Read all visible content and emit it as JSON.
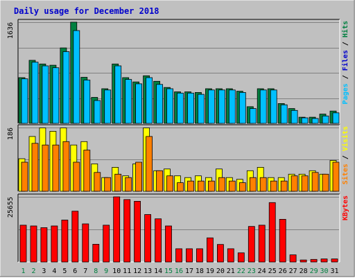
{
  "chart_data": {
    "type": "bar",
    "title": "Daily usage for December 2018",
    "categories": [
      "1",
      "2",
      "3",
      "4",
      "5",
      "6",
      "7",
      "8",
      "9",
      "10",
      "11",
      "12",
      "13",
      "14",
      "15",
      "16",
      "17",
      "18",
      "19",
      "20",
      "21",
      "22",
      "23",
      "24",
      "25",
      "26",
      "27",
      "28",
      "29",
      "30",
      "31"
    ],
    "weekend_days": [
      "1",
      "2",
      "8",
      "9",
      "15",
      "16",
      "22",
      "23",
      "29",
      "30"
    ],
    "colors": {
      "background": "#c0c0c0",
      "title": "#0000cc",
      "hits": "#008040",
      "files": "#00c0ff",
      "sites": "#ff8000",
      "visits": "#ffff00",
      "kbytes": "#ff0000",
      "weekday_label": "#000000",
      "weekend_label": "#008040"
    },
    "panels": [
      {
        "id": "requests",
        "ymax": 1636,
        "ymax_label": "1636",
        "legend": [
          {
            "text": "Pages",
            "color": "#00c0ff"
          },
          {
            "text": " / ",
            "color": "#000000"
          },
          {
            "text": "Files",
            "color": "#0000cc"
          },
          {
            "text": " / ",
            "color": "#000000"
          },
          {
            "text": "Hits",
            "color": "#008040"
          }
        ],
        "series": [
          {
            "name": "Hits",
            "color": "#008040",
            "values": [
              740,
              1020,
              960,
              940,
              1220,
              1636,
              745,
              420,
              560,
              960,
              740,
              670,
              770,
              680,
              580,
              510,
              510,
              500,
              560,
              560,
              560,
              520,
              270,
              560,
              560,
              320,
              240,
              100,
              100,
              150,
              200
            ]
          },
          {
            "name": "Files",
            "color": "#00c0ff",
            "values": [
              720,
              990,
              930,
              900,
              1160,
              1500,
              700,
              370,
              540,
              930,
              710,
              640,
              740,
              630,
              560,
              490,
              490,
              470,
              540,
              540,
              540,
              500,
              240,
              540,
              540,
              300,
              210,
              90,
              80,
              120,
              170
            ]
          }
        ]
      },
      {
        "id": "visitors",
        "ymax": 186,
        "ymax_label": "186",
        "legend": [
          {
            "text": "Sites",
            "color": "#ff8000"
          },
          {
            "text": " / ",
            "color": "#000000"
          },
          {
            "text": "Visits",
            "color": "#ffff00"
          }
        ],
        "series": [
          {
            "name": "Visits",
            "color": "#ffff00",
            "values": [
              95,
              160,
              185,
              175,
              185,
              135,
              145,
              80,
              40,
              70,
              45,
              80,
              185,
              60,
              65,
              45,
              40,
              45,
              40,
              65,
              40,
              35,
              60,
              70,
              40,
              40,
              50,
              50,
              60,
              50,
              90
            ]
          },
          {
            "name": "Sites",
            "color": "#ff8000",
            "values": [
              85,
              140,
              135,
              135,
              145,
              85,
              120,
              55,
              40,
              50,
              40,
              85,
              160,
              60,
              45,
              25,
              30,
              30,
              30,
              40,
              30,
              25,
              40,
              40,
              30,
              30,
              45,
              45,
              55,
              50,
              85
            ]
          }
        ]
      },
      {
        "id": "kbytes",
        "ymax": 25655,
        "ymax_label": "25655",
        "legend": [
          {
            "text": "KBytes",
            "color": "#ff0000"
          }
        ],
        "series": [
          {
            "name": "KBytes",
            "color": "#ff0000",
            "values": [
              14500,
              14200,
              13500,
              14200,
              16500,
              20000,
              15000,
              7000,
              14500,
              25655,
              24600,
              23900,
              18700,
              17000,
              14200,
              5200,
              5200,
              5200,
              9500,
              6900,
              5200,
              3600,
              14000,
              14500,
              23400,
              16800,
              2800,
              800,
              1000,
              1200,
              1200
            ]
          }
        ]
      }
    ]
  }
}
